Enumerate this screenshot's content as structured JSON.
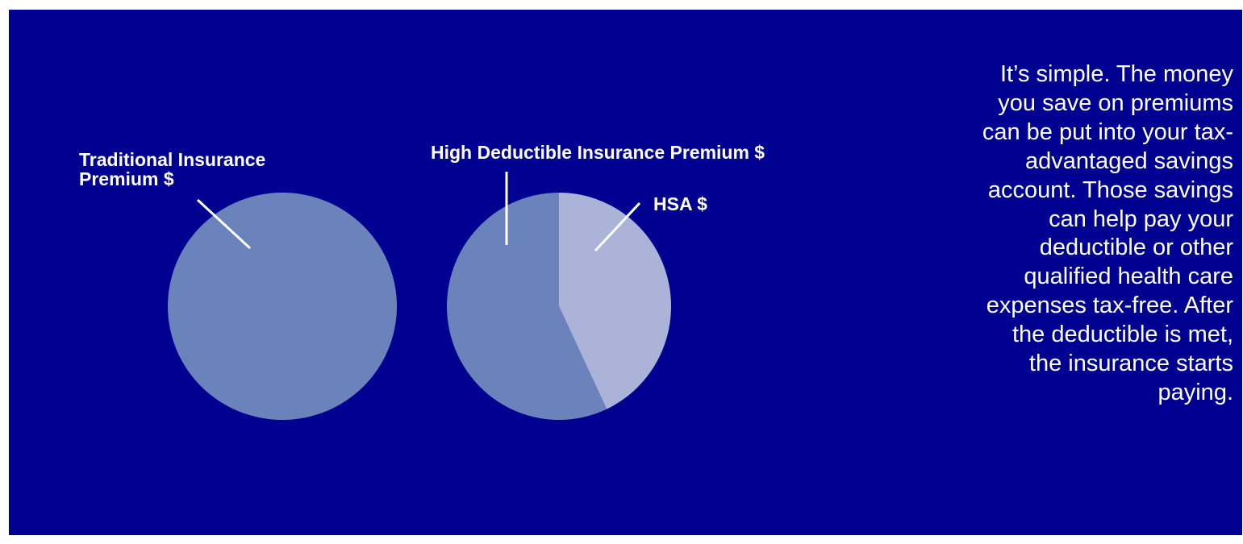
{
  "colors": {
    "background": "#000190",
    "premium_slice": "#6b83bb",
    "hsa_slice": "#abb3d8",
    "text": "#ffffff"
  },
  "chart_data": [
    {
      "type": "pie",
      "title": "",
      "slices": [
        {
          "label": [
            "Traditional Insurance",
            "Premium $"
          ],
          "value": 100,
          "color": "#6b83bb"
        }
      ]
    },
    {
      "type": "pie",
      "title": "",
      "slices": [
        {
          "label": [
            "HSA $"
          ],
          "value": 43,
          "color": "#abb3d8"
        },
        {
          "label": [
            "High Deductible Insurance Premium $"
          ],
          "value": 57,
          "color": "#6b83bb"
        }
      ]
    }
  ],
  "text_block": {
    "lines": [
      "It’s simple. The money",
      "you save on premiums",
      "can be put into your tax-",
      "advantaged savings",
      "account. Those savings",
      "can help pay your",
      "deductible or other",
      "qualified health care",
      "expenses tax-free. After",
      "the deductible is met,",
      "the insurance starts",
      "paying."
    ]
  }
}
